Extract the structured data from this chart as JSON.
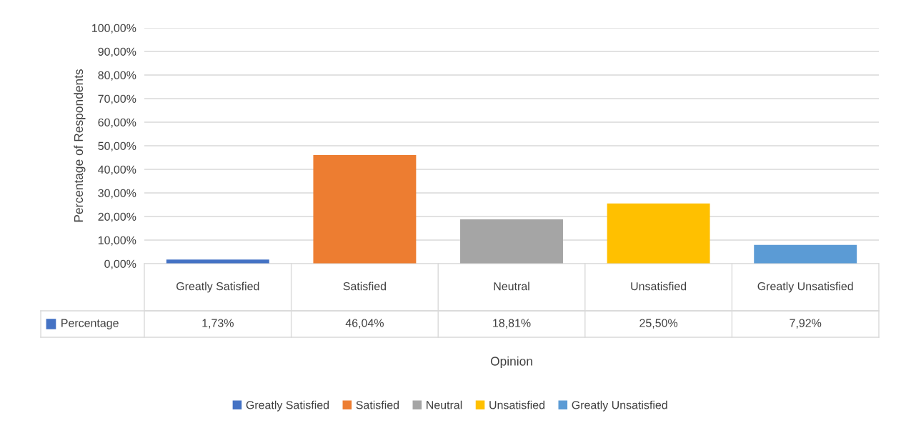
{
  "chart_data": {
    "type": "bar",
    "annotations": [
      "Opinion"
    ],
    "ylabel": "Percentage of Respondents",
    "categories": [
      "Greatly Satisfied",
      "Satisfied",
      "Neutral",
      "Unsatisfied",
      "Greatly Unsatisfied"
    ],
    "series": [
      {
        "name": "Percentage",
        "color": "#4472c4",
        "colors": [
          "#4472c4",
          "#ed7d31",
          "#a5a5a5",
          "#ffc000",
          "#5b9bd5"
        ],
        "values": [
          1.73,
          46.04,
          18.81,
          25.5,
          7.92
        ],
        "value_labels": [
          "1,73%",
          "46,04%",
          "18,81%",
          "25,50%",
          "7,92%"
        ]
      }
    ],
    "ylim": [
      0,
      100
    ],
    "yticks": [
      {
        "value": 0,
        "label": "0,00%"
      },
      {
        "value": 10,
        "label": "10,00%"
      },
      {
        "value": 20,
        "label": "20,00%"
      },
      {
        "value": 30,
        "label": "30,00%"
      },
      {
        "value": 40,
        "label": "40,00%"
      },
      {
        "value": 50,
        "label": "50,00%"
      },
      {
        "value": 60,
        "label": "60,00%"
      },
      {
        "value": 70,
        "label": "70,00%"
      },
      {
        "value": 80,
        "label": "80,00%"
      },
      {
        "value": 90,
        "label": "90,00%"
      },
      {
        "value": 100,
        "label": "100,00%"
      }
    ],
    "grid": "y",
    "legend": "bottom"
  }
}
